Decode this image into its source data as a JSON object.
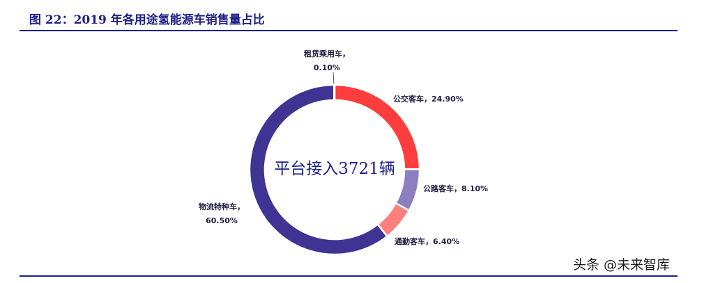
{
  "figure": {
    "title": "图 22：2019 年各用途氢能源车销售量占比",
    "watermark": "头条 @未来智库"
  },
  "colors": {
    "rule": "#1f1f8a",
    "title": "#1f1f8a"
  },
  "chart_data": {
    "type": "pie",
    "donut": true,
    "center_label": "平台接入3721辆",
    "slices": [
      {
        "label": "公交客车，24.90%",
        "value": 24.9,
        "color": "#ff3d3d"
      },
      {
        "label": "公路客车，8.10%",
        "value": 8.1,
        "color": "#8b7fc0"
      },
      {
        "label": "通勤客车，6.40%",
        "value": 6.4,
        "color": "#ff7f7f"
      },
      {
        "label": "物流特种车，\n60.50%",
        "value": 60.5,
        "color": "#3f3494"
      },
      {
        "label": "租赁乘用车，\n0.10%",
        "value": 0.1,
        "color": "#9b9b9b"
      }
    ]
  }
}
